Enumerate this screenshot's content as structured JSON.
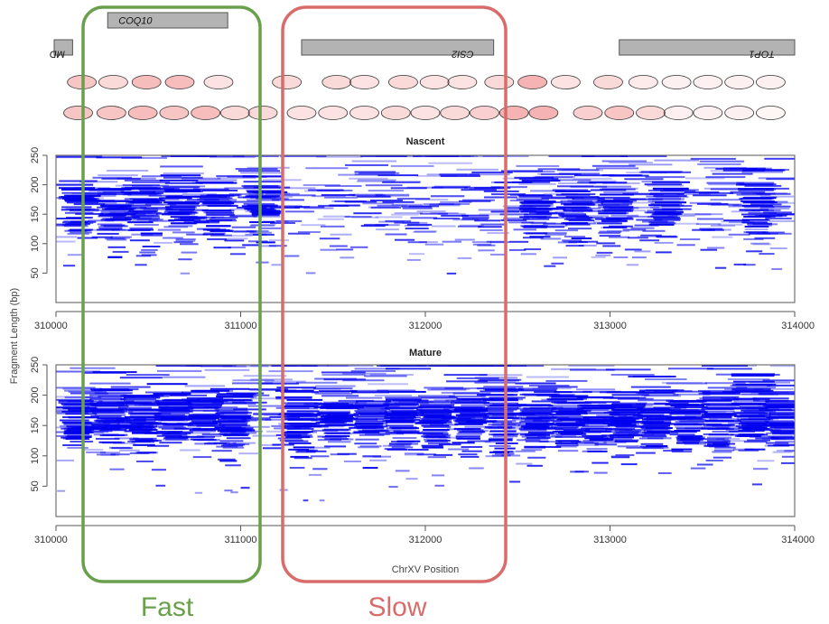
{
  "chart_data": {
    "type": "scatter",
    "description_kind": "nucleosome fragment length vs genomic position",
    "genes": [
      {
        "name": "COQ10",
        "start": 310280,
        "end": 310930,
        "strand": "+",
        "row": 0
      },
      {
        "name": "MD",
        "start": 309900,
        "end": 310090,
        "strand": "-",
        "row": 1
      },
      {
        "name": "CSI2",
        "start": 311330,
        "end": 312370,
        "strand": "-",
        "row": 1
      },
      {
        "name": "TOP1",
        "start": 313050,
        "end": 314000,
        "strand": "-",
        "row": 1
      }
    ],
    "nucleosome_rows": [
      {
        "positions": [
          310140,
          310310,
          310490,
          310670,
          310880,
          311250,
          311520,
          311670,
          311880,
          312050,
          312200,
          312400,
          312580,
          312760,
          312990,
          313180,
          313360,
          313530,
          313700,
          313870
        ],
        "intensity": [
          0.5,
          0.3,
          0.6,
          0.6,
          0.2,
          0.3,
          0.3,
          0.2,
          0.3,
          0.2,
          0.2,
          0.3,
          0.7,
          0.2,
          0.3,
          0.1,
          0.05,
          0.05,
          0.05,
          0.05
        ]
      },
      {
        "positions": [
          310120,
          310300,
          310470,
          310640,
          310810,
          310970,
          311120,
          311330,
          311500,
          311670,
          311840,
          312000,
          312160,
          312320,
          312480,
          312640,
          312880,
          313050,
          313220,
          313370,
          313530,
          313700,
          313870
        ],
        "intensity": [
          0.5,
          0.5,
          0.6,
          0.5,
          0.6,
          0.3,
          0.3,
          0.2,
          0.2,
          0.2,
          0.3,
          0.2,
          0.3,
          0.4,
          0.7,
          0.7,
          0.4,
          0.5,
          0.3,
          0.05,
          0.05,
          0.05,
          0.0
        ]
      }
    ],
    "panels": [
      {
        "title": "Nascent",
        "nucleosome_centers": [
          310130,
          310320,
          310480,
          310680,
          310880,
          311120,
          312600,
          312820,
          313020,
          313300,
          313800
        ],
        "strength": 0.6
      },
      {
        "title": "Mature",
        "nucleosome_centers": [
          310120,
          310300,
          310470,
          310640,
          310810,
          310960,
          311320,
          311520,
          311700,
          311880,
          312060,
          312240,
          312420,
          312600,
          312780,
          312930,
          313080,
          313250,
          313420,
          313590,
          313780,
          313930
        ],
        "strength": 1.0
      }
    ],
    "xlim": [
      310000,
      314000
    ],
    "x_ticks": [
      "310000",
      "311000",
      "312000",
      "313000",
      "314000"
    ],
    "x_tick_values": [
      310000,
      311000,
      312000,
      313000,
      314000
    ],
    "ylim": [
      0,
      250
    ],
    "y_ticks": [
      "50",
      "100",
      "150",
      "200",
      "250"
    ],
    "y_tick_values": [
      50,
      100,
      150,
      200,
      250
    ],
    "xlabel": "ChrXV Position",
    "ylabel": "Fragment Length (bp)",
    "regions": [
      {
        "label": "Fast",
        "start": 310150,
        "end": 311110,
        "color": "#6a9f4c"
      },
      {
        "label": "Slow",
        "start": 311230,
        "end": 312430,
        "color": "#d96b6b"
      }
    ]
  },
  "colors": {
    "fragment": "#0000ee",
    "gene_box": "#b3b3b3",
    "nucleosome_fill": "#f08080",
    "fast_color": "#6a9f4c",
    "slow_color": "#d96b6b"
  }
}
